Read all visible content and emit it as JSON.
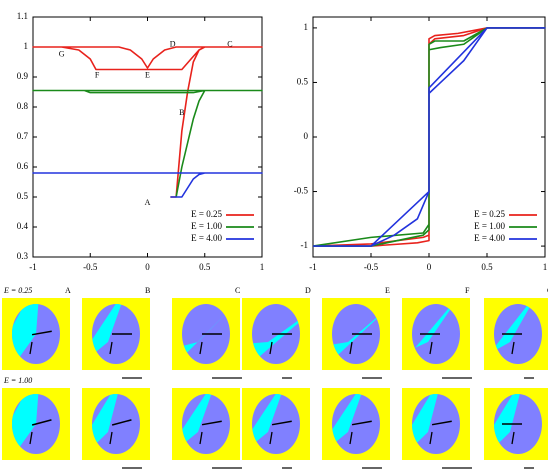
{
  "chart_data": [
    {
      "type": "line",
      "xlim": [
        -1,
        1
      ],
      "ylim": [
        0.3,
        1.1
      ],
      "xticks": [
        -1,
        -0.5,
        0,
        0.5,
        1
      ],
      "yticks": [
        0.3,
        0.4,
        0.5,
        0.6,
        0.7,
        0.8,
        0.9,
        1,
        1.1
      ],
      "legend": "lower right",
      "series": [
        {
          "name": "E = 0.25",
          "color": "#e8221c",
          "x": [
            0.2,
            0.25,
            0.3,
            0.35,
            0.4,
            0.45,
            0.5,
            0.75,
            1,
            0.5,
            0.25,
            0.15,
            0.05,
            0,
            -0.05,
            -0.15,
            -0.25,
            -0.5,
            -1,
            -0.75,
            -0.6,
            -0.5,
            -0.45,
            -0.3,
            0,
            0.3,
            0.38,
            0.45,
            0.5
          ],
          "values": [
            0.5,
            0.5,
            0.72,
            0.85,
            0.95,
            0.99,
            1,
            1,
            1,
            1,
            1,
            0.99,
            0.96,
            0.93,
            0.96,
            0.99,
            1,
            1,
            1,
            1,
            0.99,
            0.96,
            0.925,
            0.925,
            0.925,
            0.925,
            0.96,
            0.99,
            1
          ]
        },
        {
          "name": "E = 1.00",
          "color": "#1a8a1a",
          "x": [
            0.25,
            0.3,
            0.35,
            0.4,
            0.45,
            0.5,
            1,
            -1,
            -0.55,
            -0.5,
            0.4,
            0.5
          ],
          "values": [
            0.5,
            0.6,
            0.68,
            0.76,
            0.82,
            0.855,
            0.855,
            0.855,
            0.855,
            0.848,
            0.848,
            0.855
          ]
        },
        {
          "name": "E = 4.00",
          "color": "#2233dd",
          "x": [
            0.2,
            0.3,
            0.35,
            0.4,
            0.45,
            0.5,
            1,
            -1,
            1
          ],
          "values": [
            0.5,
            0.5,
            0.53,
            0.56,
            0.575,
            0.58,
            0.58,
            0.58,
            0.58
          ]
        }
      ],
      "annotations": [
        {
          "text": "A",
          "x": 0,
          "y": 0.48
        },
        {
          "text": "B",
          "x": 0.3,
          "y": 0.78
        },
        {
          "text": "C",
          "x": 0.72,
          "y": 1.008
        },
        {
          "text": "D",
          "x": 0.22,
          "y": 1.008
        },
        {
          "text": "E",
          "x": 0,
          "y": 0.905
        },
        {
          "text": "F",
          "x": -0.44,
          "y": 0.905
        },
        {
          "text": "G",
          "x": -0.75,
          "y": 0.975
        }
      ]
    },
    {
      "type": "line",
      "xlim": [
        -1,
        1
      ],
      "ylim": [
        -1.1,
        1.1
      ],
      "xticks": [
        -1,
        -0.5,
        0,
        0.5,
        1
      ],
      "yticks": [
        -1,
        -0.5,
        0,
        0.5,
        1
      ],
      "legend": "lower right",
      "series": [
        {
          "name": "E = 0.25",
          "color": "#e8221c",
          "x": [
            -1,
            -0.5,
            -0.1,
            0,
            0,
            0.05,
            0.3,
            0.5,
            1,
            0.5,
            0.25,
            0.05,
            0,
            0,
            -0.05,
            -0.5,
            -1
          ],
          "values": [
            -1,
            -1,
            -0.97,
            -0.95,
            0.85,
            0.9,
            0.93,
            1,
            1,
            1,
            0.95,
            0.93,
            0.9,
            -0.9,
            -0.92,
            -0.98,
            -1
          ]
        },
        {
          "name": "E = 1.00",
          "color": "#1a8a1a",
          "x": [
            -1,
            -0.5,
            -0.05,
            0,
            0,
            0.1,
            0.3,
            0.5,
            1,
            0.5,
            0.3,
            0.05,
            0,
            0,
            -0.05,
            -0.5,
            -1
          ],
          "values": [
            -1,
            -1,
            -0.9,
            -0.85,
            0.8,
            0.82,
            0.85,
            1,
            1,
            1,
            0.88,
            0.88,
            0.85,
            -0.8,
            -0.88,
            -0.92,
            -1
          ]
        },
        {
          "name": "E = 4.00",
          "color": "#2233dd",
          "x": [
            -1,
            -0.5,
            -0.3,
            -0.1,
            0,
            0,
            0.1,
            0.3,
            0.5,
            1,
            0.5,
            0,
            0,
            -0.5,
            -1
          ],
          "values": [
            -1,
            -1,
            -0.9,
            -0.75,
            -0.5,
            0.4,
            0.5,
            0.7,
            1,
            1,
            1,
            0.45,
            -0.5,
            -1,
            -1
          ]
        }
      ]
    }
  ],
  "panels": {
    "row_labels": [
      "E = 0.25",
      "E = 1.00"
    ],
    "column_labels": [
      "A",
      "B",
      "C",
      "D",
      "E",
      "F",
      "G"
    ]
  }
}
